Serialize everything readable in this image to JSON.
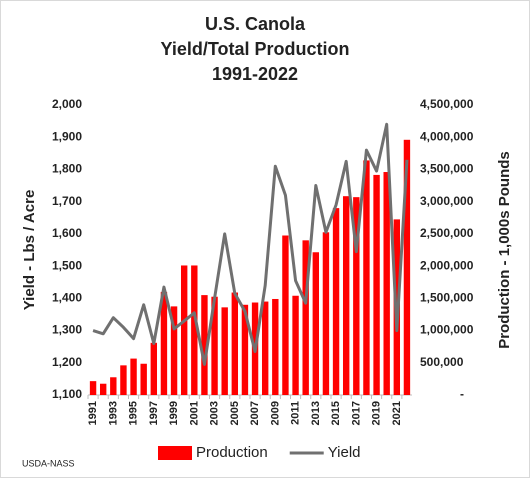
{
  "chart_data": {
    "type": "bar",
    "title": [
      "U.S. Canola",
      "Yield/Total Production",
      "1991-2022"
    ],
    "y_label": "Yield - Lbs / Acre",
    "y2_label": "Production - 1,000s Pounds",
    "source": "USDA-NASS",
    "categories": [
      "1991",
      null,
      "1993",
      null,
      "1995",
      null,
      "1997",
      null,
      "1999",
      null,
      "2001",
      null,
      "2003",
      null,
      "2005",
      null,
      "2007",
      null,
      "2009",
      null,
      "2011",
      null,
      "2013",
      null,
      "2015",
      null,
      "2017",
      null,
      "2019",
      null,
      "2021",
      null
    ],
    "series": [
      {
        "name": "Production",
        "type": "bar",
        "axis": "y2",
        "color": "#ff0000",
        "values": [
          215000,
          175000,
          275000,
          460000,
          565000,
          485000,
          810000,
          1600000,
          1375000,
          2010000,
          2010000,
          1550000,
          1525000,
          1360000,
          1590000,
          1400000,
          1435000,
          1450000,
          1490000,
          2475000,
          1540000,
          2400000,
          2215000,
          2525000,
          2900000,
          3085000,
          3070000,
          3640000,
          3415000,
          3460000,
          2725000,
          3960000
        ]
      },
      {
        "name": "Yield",
        "type": "line",
        "color": "#707070",
        "values": [
          1300,
          1290,
          1340,
          1310,
          1275,
          1380,
          1260,
          1435,
          1305,
          1330,
          1355,
          1195,
          1400,
          1600,
          1415,
          1360,
          1235,
          1440,
          1810,
          1720,
          1455,
          1385,
          1750,
          1605,
          1690,
          1825,
          1545,
          1860,
          1795,
          1940,
          1300,
          1830
        ]
      }
    ],
    "ylim": [
      1100,
      2000
    ],
    "yticks": [
      {
        "value": 1100,
        "label": "1,100"
      },
      {
        "value": 1200,
        "label": "1,200"
      },
      {
        "value": 1300,
        "label": "1,300"
      },
      {
        "value": 1400,
        "label": "1,400"
      },
      {
        "value": 1500,
        "label": "1,500"
      },
      {
        "value": 1600,
        "label": "1,600"
      },
      {
        "value": 1700,
        "label": "1,700"
      },
      {
        "value": 1800,
        "label": "1,800"
      },
      {
        "value": 1900,
        "label": "1,900"
      },
      {
        "value": 2000,
        "label": "2,000"
      }
    ],
    "y2lim": [
      0,
      4500000
    ],
    "y2ticks": [
      {
        "value": 0,
        "label": "-"
      },
      {
        "value": 500000,
        "label": "500,000"
      },
      {
        "value": 1000000,
        "label": "1,000,000"
      },
      {
        "value": 1500000,
        "label": "1,500,000"
      },
      {
        "value": 2000000,
        "label": "2,000,000"
      },
      {
        "value": 2500000,
        "label": "2,500,000"
      },
      {
        "value": 3000000,
        "label": "3,000,000"
      },
      {
        "value": 3500000,
        "label": "3,500,000"
      },
      {
        "value": 4000000,
        "label": "4,000,000"
      },
      {
        "value": 4500000,
        "label": "4,500,000"
      }
    ],
    "grid": false,
    "legend": "bottom"
  }
}
